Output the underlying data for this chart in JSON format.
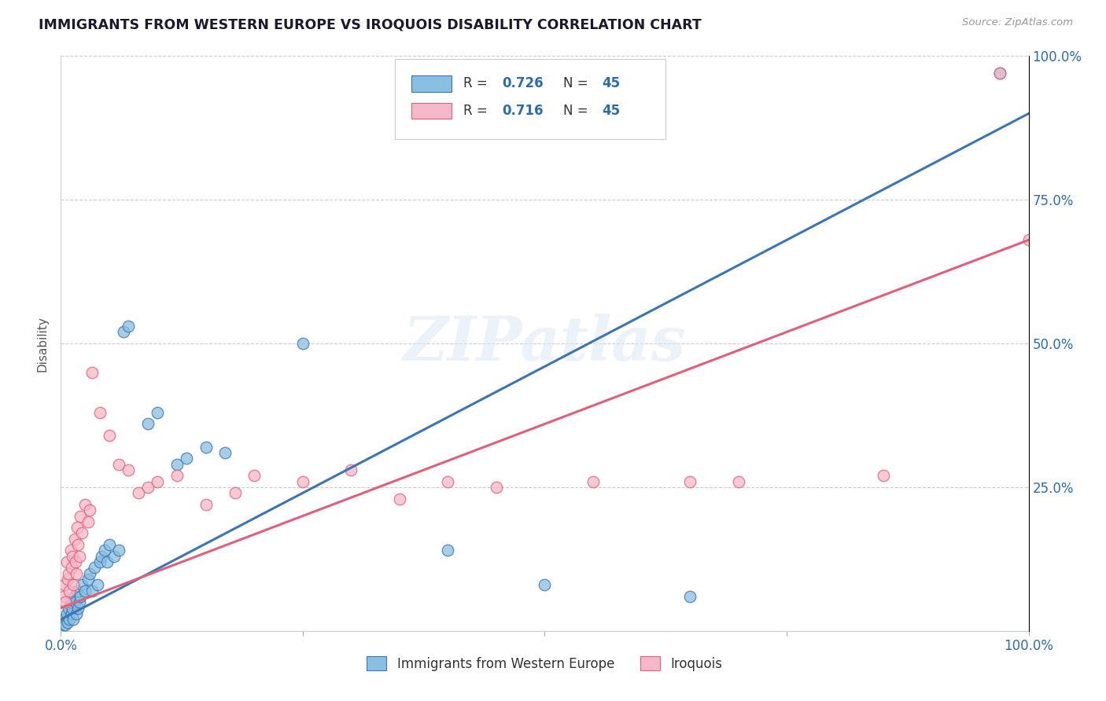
{
  "title": "IMMIGRANTS FROM WESTERN EUROPE VS IROQUOIS DISABILITY CORRELATION CHART",
  "source": "Source: ZipAtlas.com",
  "ylabel": "Disability",
  "xlim": [
    0,
    1.0
  ],
  "ylim": [
    0,
    1.0
  ],
  "blue_color": "#89bfe0",
  "pink_color": "#f5b8c8",
  "blue_line_color": "#3a75b5",
  "pink_line_color": "#e0607a",
  "legend_R_blue": "0.726",
  "legend_N_blue": "45",
  "legend_R_pink": "0.716",
  "legend_N_pink": "45",
  "legend_label_blue": "Immigrants from Western Europe",
  "legend_label_pink": "Iroquois",
  "watermark": "ZIPatlas",
  "blue_line": [
    0.0,
    0.02,
    1.0,
    0.9
  ],
  "pink_line": [
    0.0,
    0.04,
    1.0,
    0.68
  ],
  "blue_scatter": [
    [
      0.003,
      0.01
    ],
    [
      0.004,
      0.02
    ],
    [
      0.005,
      0.01
    ],
    [
      0.006,
      0.03
    ],
    [
      0.007,
      0.015
    ],
    [
      0.008,
      0.04
    ],
    [
      0.009,
      0.02
    ],
    [
      0.01,
      0.05
    ],
    [
      0.011,
      0.03
    ],
    [
      0.012,
      0.04
    ],
    [
      0.013,
      0.02
    ],
    [
      0.014,
      0.06
    ],
    [
      0.015,
      0.05
    ],
    [
      0.016,
      0.03
    ],
    [
      0.017,
      0.07
    ],
    [
      0.018,
      0.04
    ],
    [
      0.019,
      0.05
    ],
    [
      0.02,
      0.06
    ],
    [
      0.022,
      0.08
    ],
    [
      0.025,
      0.07
    ],
    [
      0.028,
      0.09
    ],
    [
      0.03,
      0.1
    ],
    [
      0.032,
      0.07
    ],
    [
      0.035,
      0.11
    ],
    [
      0.038,
      0.08
    ],
    [
      0.04,
      0.12
    ],
    [
      0.042,
      0.13
    ],
    [
      0.045,
      0.14
    ],
    [
      0.048,
      0.12
    ],
    [
      0.05,
      0.15
    ],
    [
      0.055,
      0.13
    ],
    [
      0.06,
      0.14
    ],
    [
      0.065,
      0.52
    ],
    [
      0.07,
      0.53
    ],
    [
      0.09,
      0.36
    ],
    [
      0.1,
      0.38
    ],
    [
      0.12,
      0.29
    ],
    [
      0.13,
      0.3
    ],
    [
      0.15,
      0.32
    ],
    [
      0.17,
      0.31
    ],
    [
      0.25,
      0.5
    ],
    [
      0.4,
      0.14
    ],
    [
      0.5,
      0.08
    ],
    [
      0.65,
      0.06
    ],
    [
      0.97,
      0.97
    ]
  ],
  "pink_scatter": [
    [
      0.003,
      0.06
    ],
    [
      0.004,
      0.08
    ],
    [
      0.005,
      0.05
    ],
    [
      0.006,
      0.12
    ],
    [
      0.007,
      0.09
    ],
    [
      0.008,
      0.1
    ],
    [
      0.009,
      0.07
    ],
    [
      0.01,
      0.14
    ],
    [
      0.011,
      0.11
    ],
    [
      0.012,
      0.13
    ],
    [
      0.013,
      0.08
    ],
    [
      0.014,
      0.16
    ],
    [
      0.015,
      0.12
    ],
    [
      0.016,
      0.1
    ],
    [
      0.017,
      0.18
    ],
    [
      0.018,
      0.15
    ],
    [
      0.019,
      0.13
    ],
    [
      0.02,
      0.2
    ],
    [
      0.022,
      0.17
    ],
    [
      0.025,
      0.22
    ],
    [
      0.028,
      0.19
    ],
    [
      0.03,
      0.21
    ],
    [
      0.032,
      0.45
    ],
    [
      0.04,
      0.38
    ],
    [
      0.05,
      0.34
    ],
    [
      0.06,
      0.29
    ],
    [
      0.07,
      0.28
    ],
    [
      0.08,
      0.24
    ],
    [
      0.09,
      0.25
    ],
    [
      0.1,
      0.26
    ],
    [
      0.12,
      0.27
    ],
    [
      0.15,
      0.22
    ],
    [
      0.18,
      0.24
    ],
    [
      0.2,
      0.27
    ],
    [
      0.25,
      0.26
    ],
    [
      0.3,
      0.28
    ],
    [
      0.35,
      0.23
    ],
    [
      0.4,
      0.26
    ],
    [
      0.45,
      0.25
    ],
    [
      0.55,
      0.26
    ],
    [
      0.65,
      0.26
    ],
    [
      0.7,
      0.26
    ],
    [
      0.85,
      0.27
    ],
    [
      0.97,
      0.97
    ],
    [
      1.0,
      0.68
    ]
  ]
}
